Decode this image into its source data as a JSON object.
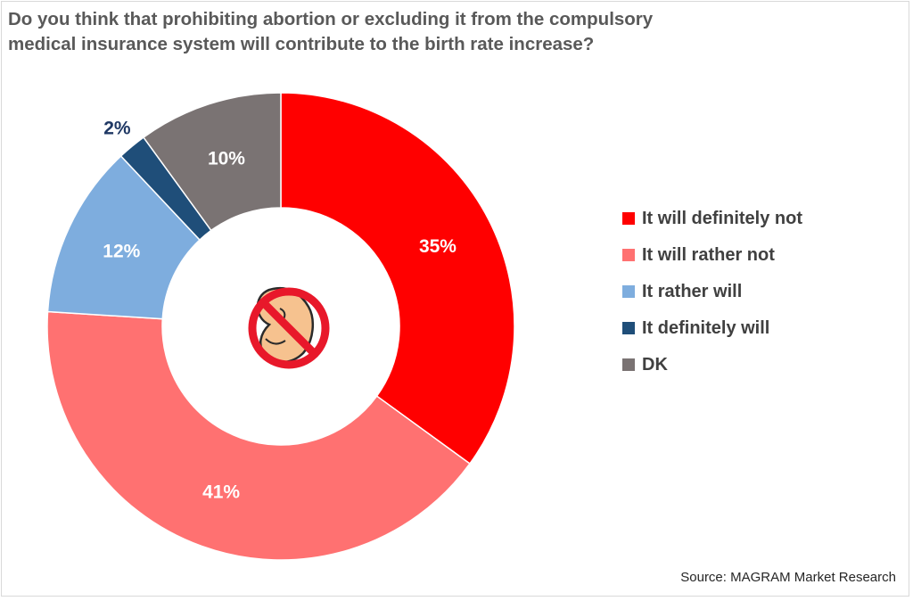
{
  "title": {
    "line1": "Do you think that prohibiting abortion or excluding it from the compulsory",
    "line2": "medical insurance system will contribute to the birth rate increase?"
  },
  "source": "Source: MAGRAM Market Research",
  "center_icon": "no-embryo-icon",
  "chart_data": {
    "type": "pie",
    "donut": true,
    "start_angle": "12 o'clock, clockwise",
    "legend_position": "right",
    "slices": [
      {
        "label": "It will definitely not",
        "value": 35,
        "display": "35%",
        "color": "#ff0000",
        "label_color": "#ffffff"
      },
      {
        "label": "It will rather not",
        "value": 41,
        "display": "41%",
        "color": "#ff7171",
        "label_color": "#ffffff"
      },
      {
        "label": "It rather will",
        "value": 12,
        "display": "12%",
        "color": "#7eadde",
        "label_color": "#ffffff"
      },
      {
        "label": "It definitely will",
        "value": 2,
        "display": "2%",
        "color": "#1f4e79",
        "label_color": "#1f3864"
      },
      {
        "label": "DK",
        "value": 10,
        "display": "10%",
        "color": "#7a7373",
        "label_color": "#ffffff"
      }
    ]
  }
}
